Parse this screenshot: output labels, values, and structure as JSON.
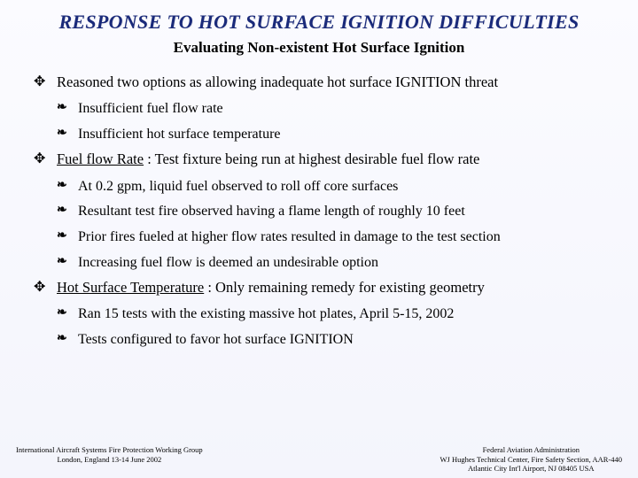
{
  "title": "RESPONSE TO HOT SURFACE IGNITION DIFFICULTIES",
  "subtitle": "Evaluating Non-existent Hot Surface Ignition",
  "bullets": {
    "b1": "Reasoned two options as allowing inadequate hot surface IGNITION threat",
    "b1a": "Insufficient fuel flow rate",
    "b1b": "Insufficient hot surface temperature",
    "b2_pre": "Fuel flow Rate",
    "b2_post": " : Test fixture being run at highest desirable fuel flow rate",
    "b2a": "At 0.2 gpm, liquid fuel observed to roll off core surfaces",
    "b2b": "Resultant test fire observed having a flame length of roughly 10 feet",
    "b2c": "Prior fires fueled at higher flow rates resulted in damage to the test section",
    "b2d": "Increasing fuel flow is deemed an undesirable option",
    "b3_pre": "Hot Surface Temperature",
    "b3_post": " : Only remaining remedy for existing geometry",
    "b3a": "Ran 15 tests with the existing massive hot plates, April 5-15, 2002",
    "b3b": "Tests configured to favor hot surface IGNITION"
  },
  "glyphs": {
    "lvl1": "✥",
    "lvl2": "❧"
  },
  "footer": {
    "left1": "International Aircraft Systems Fire Protection Working Group",
    "left2": "London, England       13-14 June 2002",
    "right1": "Federal Aviation Administration",
    "right2": "WJ Hughes Technical Center, Fire Safety Section, AAR-440",
    "right3": "Atlantic City Int'l Airport, NJ 08405  USA"
  }
}
